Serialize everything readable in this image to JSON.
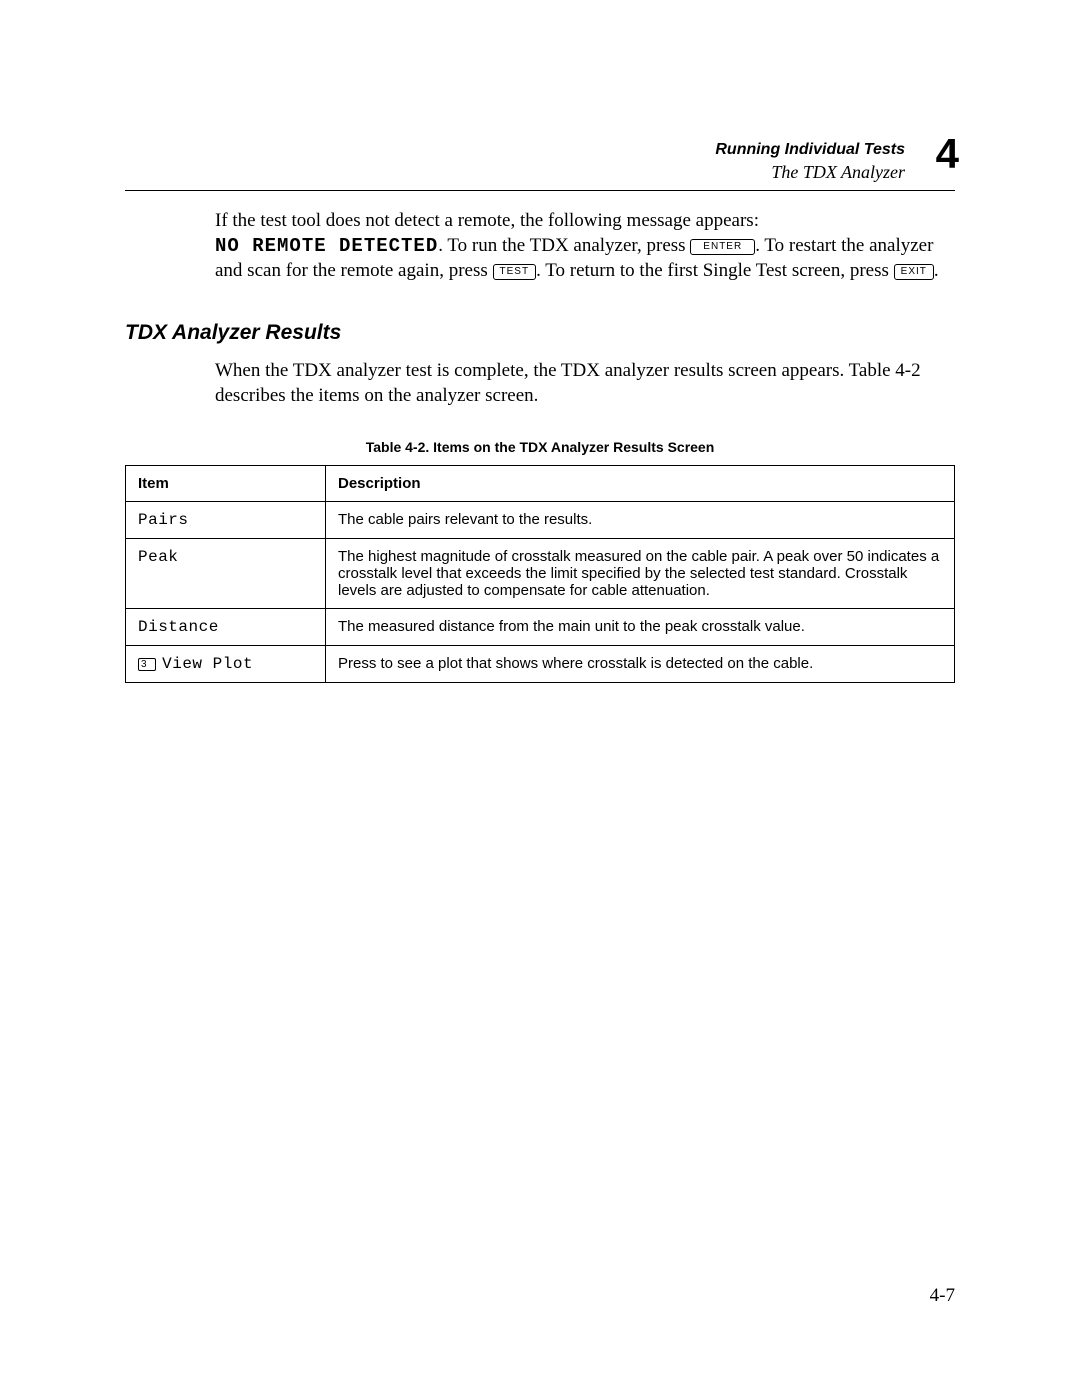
{
  "header": {
    "title": "Running Individual Tests",
    "subtitle": "The TDX Analyzer",
    "chapter": "4"
  },
  "para1": {
    "sent1": "If the test tool does not detect a remote, the following message appears:",
    "msg": "NO REMOTE DETECTED",
    "sent2a": ". To run the TDX analyzer, press ",
    "key_enter": "ENTER",
    "sent2b": ". To restart the analyzer and scan for the remote again, press ",
    "key_test": "TEST",
    "sent2c": ". To return to the first Single Test screen, press ",
    "key_exit": "EXIT",
    "sent2d": "."
  },
  "section_heading": "TDX Analyzer Results",
  "para2": "When the TDX analyzer test is complete, the TDX analyzer results screen appears. Table 4-2 describes the items on the analyzer screen.",
  "table": {
    "caption": "Table 4-2. Items on the TDX Analyzer Results Screen",
    "col_item": "Item",
    "col_desc": "Description",
    "rows": [
      {
        "item": "Pairs",
        "softkey": "",
        "desc": "The cable pairs relevant to the results."
      },
      {
        "item": "Peak",
        "softkey": "",
        "desc": "The highest magnitude of crosstalk measured on the cable pair. A peak over 50 indicates a crosstalk level that exceeds the limit specified by the selected test standard. Crosstalk levels are adjusted to compensate for cable attenuation."
      },
      {
        "item": "Distance",
        "softkey": "",
        "desc": "The measured distance from the main unit to the peak crosstalk value."
      },
      {
        "item": "View Plot",
        "softkey": "3",
        "desc": "Press to see a plot that shows where crosstalk is detected on the cable."
      }
    ]
  },
  "page_number": "4-7"
}
